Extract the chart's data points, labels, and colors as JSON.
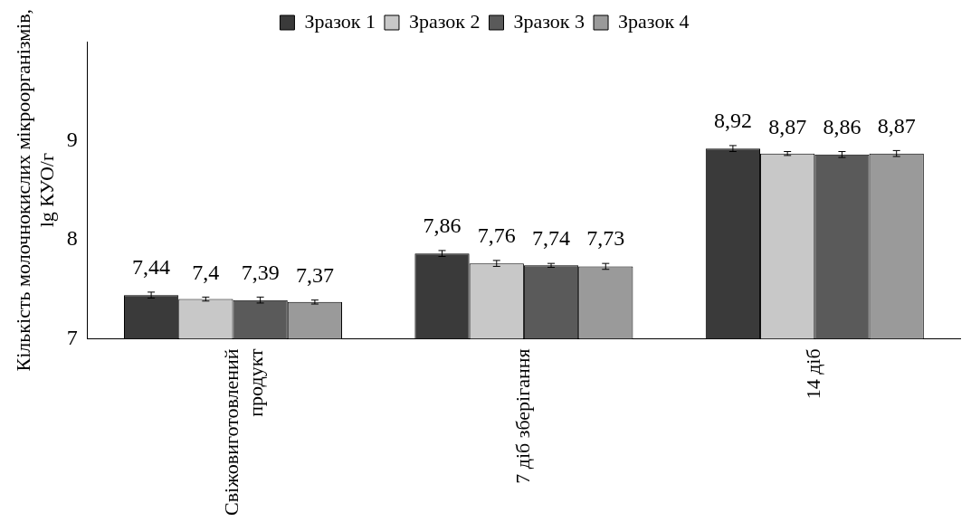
{
  "chart_data": {
    "type": "bar",
    "ylabel": "Кількість молочнокислих мікроорганізмів, lg КУО/г",
    "categories": [
      "Свіжовиготовлений продукт",
      "7 діб зберігання",
      "14 діб"
    ],
    "series": [
      {
        "name": "Зразок 1",
        "color": "#3a3a3a",
        "values": [
          7.44,
          7.86,
          8.92
        ],
        "value_labels": [
          "7,44",
          "7,86",
          "8,92"
        ],
        "errors": [
          0.03,
          0.03,
          0.03
        ]
      },
      {
        "name": "Зразок 2",
        "color": "#c8c8c8",
        "values": [
          7.4,
          7.76,
          8.87
        ],
        "value_labels": [
          "7,4",
          "7,76",
          "8,87"
        ],
        "errors": [
          0.02,
          0.03,
          0.02
        ]
      },
      {
        "name": "Зразок 3",
        "color": "#5a5a5a",
        "values": [
          7.39,
          7.74,
          8.86
        ],
        "value_labels": [
          "7,39",
          "7,74",
          "8,86"
        ],
        "errors": [
          0.03,
          0.02,
          0.03
        ]
      },
      {
        "name": "Зразок 4",
        "color": "#9a9a9a",
        "values": [
          7.37,
          7.73,
          8.87
        ],
        "value_labels": [
          "7,37",
          "7,73",
          "8,87"
        ],
        "errors": [
          0.02,
          0.03,
          0.03
        ]
      }
    ],
    "ylim": [
      7,
      10
    ],
    "yticks": [
      7,
      8,
      9
    ],
    "grid": false,
    "legend": "top"
  }
}
